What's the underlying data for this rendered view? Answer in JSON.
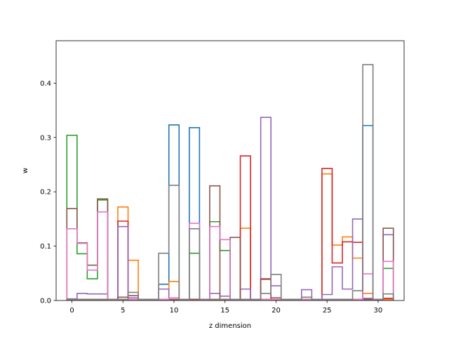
{
  "chart_data": {
    "type": "step",
    "title": "",
    "xlabel": "z dimension",
    "ylabel": "w",
    "xlim": [
      -1.55,
      32.55
    ],
    "ylim": [
      0,
      0.478
    ],
    "x": [
      0,
      1,
      2,
      3,
      4,
      5,
      6,
      7,
      8,
      9,
      10,
      11,
      12,
      13,
      14,
      15,
      16,
      17,
      18,
      19,
      20,
      21,
      22,
      23,
      24,
      25,
      26,
      27,
      28,
      29,
      30,
      31
    ],
    "xticks": [
      0,
      5,
      10,
      15,
      20,
      25,
      30
    ],
    "xtick_labels": [
      "0",
      "5",
      "10",
      "15",
      "20",
      "25",
      "30"
    ],
    "yticks": [
      0.0,
      0.1,
      0.2,
      0.3,
      0.4
    ],
    "ytick_labels": [
      "0.0",
      "0.1",
      "0.2",
      "0.3",
      "0.4"
    ],
    "grid": false,
    "legend": false,
    "series": [
      {
        "color": "#1f77b4",
        "values": [
          0.002,
          0.002,
          0.002,
          0.002,
          0.002,
          0.002,
          0.002,
          0.002,
          0.002,
          0.03,
          0.323,
          0.002,
          0.318,
          0.002,
          0.002,
          0.002,
          0.002,
          0.002,
          0.002,
          0.002,
          0.002,
          0.002,
          0.002,
          0.002,
          0.002,
          0.002,
          0.002,
          0.002,
          0.002,
          0.322,
          0.002,
          0.002
        ]
      },
      {
        "color": "#ff7f0e",
        "values": [
          0.002,
          0.002,
          0.002,
          0.002,
          0.002,
          0.172,
          0.074,
          0.002,
          0.002,
          0.002,
          0.035,
          0.002,
          0.002,
          0.002,
          0.002,
          0.002,
          0.002,
          0.133,
          0.002,
          0.002,
          0.002,
          0.002,
          0.002,
          0.002,
          0.002,
          0.233,
          0.102,
          0.117,
          0.078,
          0.013,
          0.002,
          0.002
        ]
      },
      {
        "color": "#2ca02c",
        "values": [
          0.304,
          0.086,
          0.04,
          0.185,
          0.002,
          0.002,
          0.002,
          0.002,
          0.002,
          0.002,
          0.002,
          0.002,
          0.087,
          0.002,
          0.145,
          0.092,
          0.002,
          0.002,
          0.002,
          0.002,
          0.002,
          0.002,
          0.002,
          0.002,
          0.002,
          0.002,
          0.002,
          0.002,
          0.002,
          0.002,
          0.002,
          0.059
        ]
      },
      {
        "color": "#d62728",
        "values": [
          0.002,
          0.002,
          0.002,
          0.002,
          0.002,
          0.146,
          0.002,
          0.002,
          0.002,
          0.002,
          0.002,
          0.002,
          0.002,
          0.002,
          0.002,
          0.002,
          0.002,
          0.266,
          0.002,
          0.039,
          0.002,
          0.002,
          0.002,
          0.002,
          0.002,
          0.243,
          0.069,
          0.108,
          0.107,
          0.002,
          0.002,
          0.004
        ]
      },
      {
        "color": "#9467bd",
        "values": [
          0.003,
          0.013,
          0.012,
          0.012,
          0.002,
          0.136,
          0.005,
          0.002,
          0.002,
          0.021,
          0.002,
          0.002,
          0.002,
          0.002,
          0.013,
          0.008,
          0.002,
          0.021,
          0.002,
          0.337,
          0.027,
          0.002,
          0.002,
          0.02,
          0.002,
          0.011,
          0.062,
          0.021,
          0.15,
          0.004,
          0.002,
          0.121
        ]
      },
      {
        "color": "#8c564b",
        "values": [
          0.169,
          0.106,
          0.065,
          0.187,
          0.002,
          0.006,
          0.009,
          0.002,
          0.002,
          0.002,
          0.002,
          0.002,
          0.002,
          0.002,
          0.211,
          0.002,
          0.116,
          0.002,
          0.002,
          0.04,
          0.005,
          0.002,
          0.002,
          0.002,
          0.002,
          0.002,
          0.002,
          0.002,
          0.002,
          0.002,
          0.002,
          0.133
        ]
      },
      {
        "color": "#e377c2",
        "values": [
          0.132,
          0.105,
          0.056,
          0.163,
          0.002,
          0.002,
          0.002,
          0.002,
          0.002,
          0.002,
          0.005,
          0.002,
          0.142,
          0.002,
          0.136,
          0.112,
          0.002,
          0.002,
          0.002,
          0.002,
          0.002,
          0.002,
          0.002,
          0.002,
          0.002,
          0.002,
          0.002,
          0.002,
          0.002,
          0.049,
          0.002,
          0.072
        ]
      },
      {
        "color": "#7f7f7f",
        "values": [
          0.002,
          0.002,
          0.002,
          0.002,
          0.002,
          0.002,
          0.015,
          0.002,
          0.002,
          0.087,
          0.212,
          0.002,
          0.132,
          0.002,
          0.002,
          0.002,
          0.002,
          0.002,
          0.002,
          0.013,
          0.048,
          0.002,
          0.002,
          0.006,
          0.002,
          0.002,
          0.002,
          0.002,
          0.018,
          0.434,
          0.002,
          0.012
        ]
      }
    ]
  }
}
